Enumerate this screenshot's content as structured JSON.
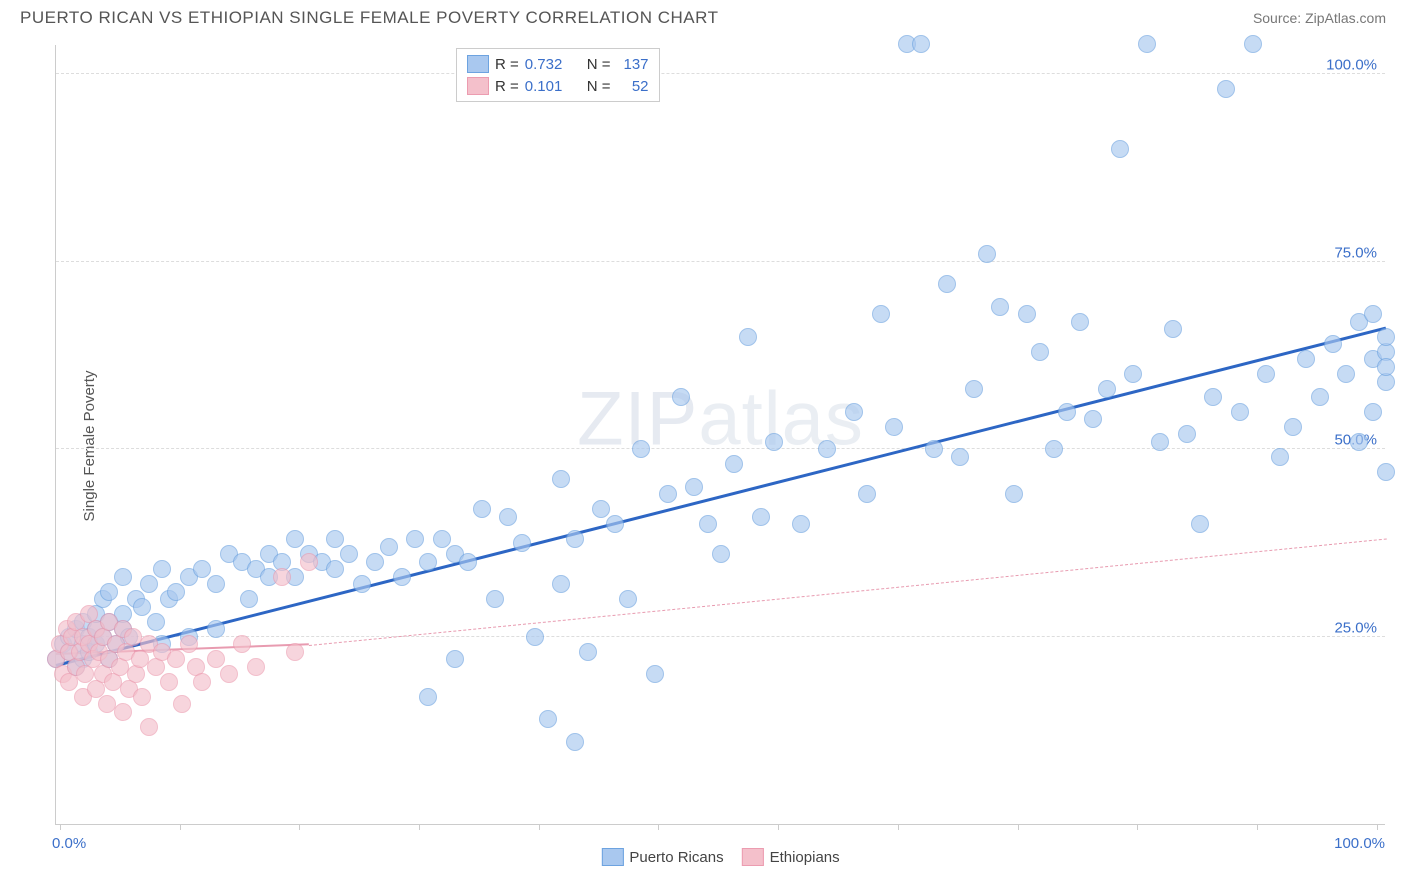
{
  "header": {
    "title": "PUERTO RICAN VS ETHIOPIAN SINGLE FEMALE POVERTY CORRELATION CHART",
    "source_prefix": "Source: ",
    "source_name": "ZipAtlas.com"
  },
  "watermark": {
    "bold": "ZIP",
    "light": "atlas"
  },
  "chart": {
    "type": "scatter",
    "ylabel": "Single Female Poverty",
    "background_color": "#ffffff",
    "grid_color": "#dddddd",
    "axis_color": "#cccccc",
    "tick_label_color": "#3b6fc9",
    "xlim": [
      0,
      100
    ],
    "ylim": [
      0,
      104
    ],
    "yticks": [
      {
        "value": 25,
        "label": "25.0%"
      },
      {
        "value": 50,
        "label": "50.0%"
      },
      {
        "value": 75,
        "label": "75.0%"
      },
      {
        "value": 100,
        "label": "100.0%"
      }
    ],
    "xtick_positions": [
      0.3,
      9.3,
      18.3,
      27.3,
      36.3,
      45.3,
      54.3,
      63.3,
      72.3,
      81.3,
      90.3,
      99.3
    ],
    "xtick_labels": [
      {
        "pos": 0,
        "label": "0.0%"
      },
      {
        "pos": 100,
        "label": "100.0%"
      }
    ],
    "series": [
      {
        "name": "Puerto Ricans",
        "fill_color": "#a9c8ef",
        "stroke_color": "#6da3e0",
        "marker_radius": 9,
        "R": "0.732",
        "N": "137",
        "trend": {
          "x1": 0,
          "y1": 21,
          "x2": 100,
          "y2": 66,
          "color": "#2d66c4",
          "width": 3,
          "dashed": false,
          "extrap_from": 100
        },
        "points": [
          [
            0,
            22
          ],
          [
            0.5,
            24
          ],
          [
            1,
            23
          ],
          [
            1,
            25
          ],
          [
            1.5,
            21
          ],
          [
            1.5,
            26
          ],
          [
            2,
            24
          ],
          [
            2,
            27
          ],
          [
            2,
            22
          ],
          [
            2.5,
            25
          ],
          [
            2.5,
            23
          ],
          [
            3,
            26
          ],
          [
            3,
            24
          ],
          [
            3,
            28
          ],
          [
            3.5,
            25
          ],
          [
            3.5,
            30
          ],
          [
            4,
            22
          ],
          [
            4,
            27
          ],
          [
            4,
            31
          ],
          [
            4.5,
            24
          ],
          [
            5,
            26
          ],
          [
            5,
            28
          ],
          [
            5,
            33
          ],
          [
            5.5,
            25
          ],
          [
            6,
            30
          ],
          [
            6.5,
            29
          ],
          [
            7,
            32
          ],
          [
            7.5,
            27
          ],
          [
            8,
            24
          ],
          [
            8,
            34
          ],
          [
            8.5,
            30
          ],
          [
            9,
            31
          ],
          [
            10,
            33
          ],
          [
            10,
            25
          ],
          [
            11,
            34
          ],
          [
            12,
            32
          ],
          [
            12,
            26
          ],
          [
            13,
            36
          ],
          [
            14,
            35
          ],
          [
            14.5,
            30
          ],
          [
            15,
            34
          ],
          [
            16,
            33
          ],
          [
            16,
            36
          ],
          [
            17,
            35
          ],
          [
            18,
            33
          ],
          [
            18,
            38
          ],
          [
            19,
            36
          ],
          [
            20,
            35
          ],
          [
            21,
            34
          ],
          [
            21,
            38
          ],
          [
            22,
            36
          ],
          [
            23,
            32
          ],
          [
            24,
            35
          ],
          [
            25,
            37
          ],
          [
            26,
            33
          ],
          [
            27,
            38
          ],
          [
            28,
            35
          ],
          [
            28,
            17
          ],
          [
            29,
            38
          ],
          [
            30,
            36
          ],
          [
            30,
            22
          ],
          [
            31,
            35
          ],
          [
            32,
            42
          ],
          [
            33,
            30
          ],
          [
            34,
            41
          ],
          [
            35,
            37.5
          ],
          [
            36,
            25
          ],
          [
            37,
            14
          ],
          [
            38,
            46
          ],
          [
            38,
            32
          ],
          [
            39,
            38
          ],
          [
            39,
            11
          ],
          [
            40,
            23
          ],
          [
            41,
            42
          ],
          [
            42,
            40
          ],
          [
            43,
            30
          ],
          [
            44,
            50
          ],
          [
            45,
            20
          ],
          [
            46,
            44
          ],
          [
            47,
            57
          ],
          [
            48,
            45
          ],
          [
            49,
            40
          ],
          [
            50,
            36
          ],
          [
            51,
            48
          ],
          [
            52,
            65
          ],
          [
            53,
            41
          ],
          [
            54,
            51
          ],
          [
            56,
            40
          ],
          [
            58,
            50
          ],
          [
            60,
            55
          ],
          [
            61,
            44
          ],
          [
            62,
            68
          ],
          [
            63,
            53
          ],
          [
            64,
            104
          ],
          [
            65,
            104
          ],
          [
            66,
            50
          ],
          [
            67,
            72
          ],
          [
            68,
            49
          ],
          [
            69,
            58
          ],
          [
            70,
            76
          ],
          [
            71,
            69
          ],
          [
            72,
            44
          ],
          [
            73,
            68
          ],
          [
            74,
            63
          ],
          [
            75,
            50
          ],
          [
            76,
            55
          ],
          [
            77,
            67
          ],
          [
            78,
            54
          ],
          [
            79,
            58
          ],
          [
            80,
            90
          ],
          [
            81,
            60
          ],
          [
            82,
            104
          ],
          [
            83,
            51
          ],
          [
            84,
            66
          ],
          [
            85,
            52
          ],
          [
            86,
            40
          ],
          [
            87,
            57
          ],
          [
            88,
            98
          ],
          [
            89,
            55
          ],
          [
            90,
            104
          ],
          [
            91,
            60
          ],
          [
            92,
            49
          ],
          [
            93,
            53
          ],
          [
            94,
            62
          ],
          [
            95,
            57
          ],
          [
            96,
            64
          ],
          [
            97,
            60
          ],
          [
            98,
            67
          ],
          [
            98,
            51
          ],
          [
            99,
            62
          ],
          [
            99,
            68
          ],
          [
            99,
            55
          ],
          [
            100,
            63
          ],
          [
            100,
            65
          ],
          [
            100,
            59
          ],
          [
            100,
            61
          ],
          [
            100,
            47
          ]
        ]
      },
      {
        "name": "Ethiopians",
        "fill_color": "#f4c0cb",
        "stroke_color": "#ec9cb0",
        "marker_radius": 9,
        "R": "0.101",
        "N": "52",
        "trend": {
          "x1": 0,
          "y1": 22.5,
          "x2": 19,
          "y2": 23.8,
          "color": "#e89bb0",
          "width": 2,
          "dashed": false,
          "extrap_from": 19,
          "extrap_to_x": 100,
          "extrap_to_y": 38,
          "extrap_color": "#e89bb0"
        },
        "points": [
          [
            0,
            22
          ],
          [
            0.3,
            24
          ],
          [
            0.5,
            20
          ],
          [
            0.8,
            26
          ],
          [
            1,
            23
          ],
          [
            1,
            19
          ],
          [
            1.2,
            25
          ],
          [
            1.5,
            21
          ],
          [
            1.5,
            27
          ],
          [
            1.8,
            23
          ],
          [
            2,
            17
          ],
          [
            2,
            25
          ],
          [
            2.2,
            20
          ],
          [
            2.5,
            24
          ],
          [
            2.5,
            28
          ],
          [
            2.8,
            22
          ],
          [
            3,
            18
          ],
          [
            3,
            26
          ],
          [
            3.2,
            23
          ],
          [
            3.5,
            20
          ],
          [
            3.5,
            25
          ],
          [
            3.8,
            16
          ],
          [
            4,
            27
          ],
          [
            4,
            22
          ],
          [
            4.3,
            19
          ],
          [
            4.5,
            24
          ],
          [
            4.8,
            21
          ],
          [
            5,
            26
          ],
          [
            5,
            15
          ],
          [
            5.3,
            23
          ],
          [
            5.5,
            18
          ],
          [
            5.8,
            25
          ],
          [
            6,
            20
          ],
          [
            6.3,
            22
          ],
          [
            6.5,
            17
          ],
          [
            7,
            24
          ],
          [
            7,
            13
          ],
          [
            7.5,
            21
          ],
          [
            8,
            23
          ],
          [
            8.5,
            19
          ],
          [
            9,
            22
          ],
          [
            9.5,
            16
          ],
          [
            10,
            24
          ],
          [
            10.5,
            21
          ],
          [
            11,
            19
          ],
          [
            12,
            22
          ],
          [
            13,
            20
          ],
          [
            14,
            24
          ],
          [
            15,
            21
          ],
          [
            17,
            33
          ],
          [
            18,
            23
          ],
          [
            19,
            35
          ]
        ]
      }
    ]
  },
  "legend_top": {
    "r_label": "R =",
    "n_label": "N ="
  },
  "legend_bottom": [
    {
      "label": "Puerto Ricans",
      "fill": "#a9c8ef",
      "stroke": "#6da3e0"
    },
    {
      "label": "Ethiopians",
      "fill": "#f4c0cb",
      "stroke": "#ec9cb0"
    }
  ]
}
